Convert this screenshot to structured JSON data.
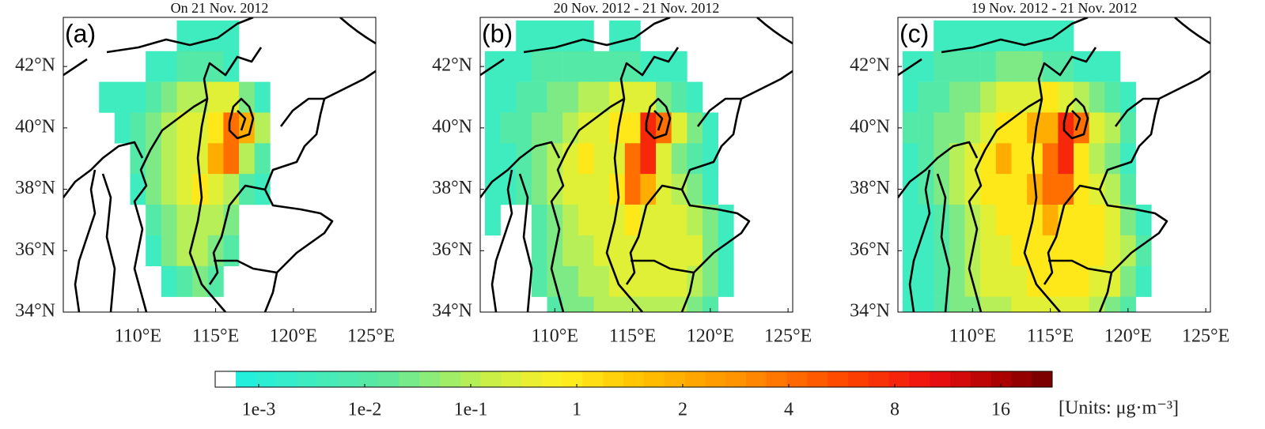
{
  "panels": [
    {
      "title": "On 21 Nov. 2012",
      "label": "(a)",
      "grid": [
        [
          null,
          null,
          null,
          null,
          null,
          null,
          null,
          0.003,
          0.003,
          0.003,
          0.003,
          null,
          null,
          null,
          null,
          null,
          null,
          null,
          null,
          null
        ],
        [
          null,
          null,
          null,
          null,
          null,
          0.003,
          0.003,
          0.01,
          0.01,
          0.01,
          0.003,
          null,
          null,
          null,
          null,
          null,
          null,
          null,
          null,
          null
        ],
        [
          null,
          null,
          0.003,
          0.003,
          0.003,
          0.01,
          0.03,
          0.1,
          0.1,
          0.3,
          0.3,
          0.03,
          0.003,
          null,
          null,
          null,
          null,
          null,
          null,
          null
        ],
        [
          null,
          null,
          null,
          0.003,
          0.01,
          0.03,
          0.1,
          0.3,
          0.3,
          1,
          4,
          2,
          0.1,
          null,
          null,
          null,
          null,
          null,
          null,
          null
        ],
        [
          null,
          null,
          null,
          null,
          0.01,
          0.03,
          0.1,
          0.3,
          0.3,
          2,
          4,
          0.1,
          0.01,
          null,
          null,
          null,
          null,
          null,
          null,
          null
        ],
        [
          null,
          null,
          null,
          null,
          0.003,
          0.03,
          0.1,
          0.3,
          1,
          0.3,
          0.1,
          0.01,
          0.003,
          null,
          null,
          null,
          null,
          null,
          null,
          null
        ],
        [
          null,
          null,
          null,
          null,
          null,
          0.01,
          0.03,
          0.1,
          0.1,
          0.1,
          0.03,
          null,
          null,
          null,
          null,
          null,
          null,
          null,
          null,
          null
        ],
        [
          null,
          null,
          null,
          null,
          null,
          0.003,
          0.03,
          0.1,
          0.1,
          0.03,
          0.01,
          null,
          null,
          null,
          null,
          null,
          null,
          null,
          null,
          null
        ],
        [
          null,
          null,
          null,
          null,
          null,
          null,
          0.003,
          0.01,
          0.03,
          0.01,
          null,
          null,
          null,
          null,
          null,
          null,
          null,
          null,
          null,
          null
        ],
        [
          null,
          null,
          null,
          null,
          null,
          null,
          null,
          null,
          null,
          null,
          null,
          null,
          null,
          null,
          null,
          null,
          null,
          null,
          null,
          null
        ]
      ]
    },
    {
      "title": "20 Nov. 2012 - 21 Nov. 2012",
      "label": "(b)",
      "grid": [
        [
          null,
          null,
          0.003,
          0.003,
          0.003,
          0.003,
          0.003,
          null,
          0.003,
          0.003,
          null,
          null,
          null,
          null,
          null,
          null,
          null,
          null,
          null,
          null
        ],
        [
          0.003,
          0.003,
          0.003,
          0.01,
          0.01,
          0.01,
          0.01,
          0.01,
          0.01,
          0.01,
          0.003,
          0.003,
          0.003,
          null,
          null,
          null,
          null,
          null,
          null,
          null
        ],
        [
          0.003,
          0.003,
          0.01,
          0.01,
          0.03,
          0.03,
          0.1,
          0.1,
          0.3,
          0.3,
          0.3,
          0.03,
          0.01,
          0.003,
          null,
          null,
          null,
          null,
          null,
          null
        ],
        [
          0.003,
          0.01,
          0.01,
          0.03,
          0.03,
          0.1,
          0.3,
          0.3,
          1,
          1,
          8,
          4,
          0.3,
          0.03,
          0.003,
          null,
          null,
          null,
          null,
          null
        ],
        [
          0.003,
          0.003,
          0.01,
          0.03,
          0.1,
          0.3,
          1,
          0.3,
          0.3,
          4,
          8,
          0.3,
          0.03,
          0.01,
          0.003,
          null,
          null,
          null,
          null,
          null
        ],
        [
          0.003,
          0.003,
          0.01,
          0.03,
          0.1,
          0.3,
          0.3,
          0.3,
          1,
          4,
          2,
          0.3,
          0.1,
          0.03,
          0.003,
          null,
          null,
          null,
          null,
          null
        ],
        [
          0.003,
          null,
          null,
          0.01,
          0.03,
          0.1,
          0.3,
          0.3,
          0.3,
          1,
          0.3,
          0.3,
          0.3,
          0.1,
          0.03,
          0.003,
          null,
          null,
          null,
          null
        ],
        [
          null,
          null,
          null,
          0.01,
          0.03,
          0.1,
          0.1,
          0.3,
          0.3,
          0.3,
          0.3,
          0.3,
          0.3,
          0.3,
          0.03,
          0.003,
          null,
          null,
          null,
          null
        ],
        [
          null,
          null,
          null,
          0.01,
          0.03,
          0.03,
          0.1,
          0.1,
          0.3,
          0.3,
          0.3,
          0.3,
          0.3,
          0.1,
          0.03,
          0.003,
          null,
          null,
          null,
          null
        ],
        [
          null,
          null,
          null,
          null,
          0.01,
          0.03,
          0.03,
          0.1,
          0.1,
          0.1,
          0.1,
          0.1,
          0.1,
          0.03,
          0.01,
          null,
          null,
          null,
          null,
          null
        ]
      ]
    },
    {
      "title": "19 Nov. 2012 - 21 Nov. 2012",
      "label": "(c)",
      "grid": [
        [
          null,
          null,
          0.003,
          0.003,
          0.003,
          0.003,
          0.003,
          0.003,
          0.003,
          0.003,
          0.003,
          null,
          null,
          null,
          null,
          null,
          null,
          null,
          null,
          null
        ],
        [
          0.003,
          0.003,
          0.01,
          0.01,
          0.01,
          0.01,
          0.03,
          0.03,
          0.03,
          0.01,
          0.01,
          0.003,
          0.003,
          0.003,
          null,
          null,
          null,
          null,
          null,
          null
        ],
        [
          0.003,
          0.01,
          0.01,
          0.03,
          0.03,
          0.1,
          0.3,
          0.3,
          0.3,
          1,
          0.3,
          0.1,
          0.03,
          0.01,
          0.003,
          null,
          null,
          null,
          null,
          null
        ],
        [
          0.01,
          0.01,
          0.03,
          0.03,
          0.1,
          0.3,
          1,
          1,
          2,
          2,
          8,
          4,
          0.3,
          0.1,
          0.01,
          null,
          null,
          null,
          null,
          null
        ],
        [
          0.003,
          0.01,
          0.03,
          0.1,
          0.3,
          1,
          2,
          1,
          1,
          4,
          8,
          1,
          0.1,
          0.03,
          0.003,
          null,
          null,
          null,
          null,
          null
        ],
        [
          0.003,
          0.01,
          0.03,
          0.1,
          0.3,
          1,
          1,
          1,
          2,
          4,
          4,
          1,
          0.3,
          0.1,
          0.01,
          null,
          null,
          null,
          null,
          null
        ],
        [
          0.003,
          0.003,
          0.01,
          0.03,
          0.1,
          0.3,
          1,
          1,
          1,
          2,
          1,
          1,
          1,
          0.3,
          0.03,
          0.003,
          null,
          null,
          null,
          null
        ],
        [
          0.003,
          0.003,
          0.01,
          0.03,
          0.1,
          0.3,
          0.3,
          1,
          1,
          1,
          1,
          1,
          1,
          0.3,
          0.1,
          0.01,
          null,
          null,
          null,
          null
        ],
        [
          0.003,
          0.003,
          0.01,
          0.03,
          0.1,
          0.3,
          0.3,
          0.3,
          1,
          1,
          1,
          1,
          0.3,
          0.3,
          0.03,
          0.003,
          null,
          null,
          null,
          null
        ],
        [
          0.003,
          0.003,
          0.01,
          0.03,
          0.03,
          0.1,
          0.1,
          0.3,
          0.3,
          0.3,
          0.3,
          0.3,
          0.1,
          0.03,
          0.01,
          null,
          null,
          null,
          null,
          null
        ]
      ]
    }
  ],
  "axes": {
    "xlim": [
      105.2,
      125.3
    ],
    "ylim": [
      34,
      43.6
    ],
    "xticks": [
      {
        "value": 110,
        "label": "110°E"
      },
      {
        "value": 115,
        "label": "115°E"
      },
      {
        "value": 120,
        "label": "120°E"
      },
      {
        "value": 125,
        "label": "125°E"
      }
    ],
    "yticks": [
      {
        "value": 34,
        "label": "34°N"
      },
      {
        "value": 36,
        "label": "36°N"
      },
      {
        "value": 38,
        "label": "38°N"
      },
      {
        "value": 40,
        "label": "40°N"
      },
      {
        "value": 42,
        "label": "42°N"
      }
    ]
  },
  "colorbar": {
    "ticks": [
      {
        "value": 0.001,
        "label": "1e-3"
      },
      {
        "value": 0.01,
        "label": "1e-2"
      },
      {
        "value": 0.1,
        "label": "1e-1"
      },
      1,
      2,
      4,
      8,
      16
    ],
    "units": "[Units: μg·m⁻³]"
  }
}
